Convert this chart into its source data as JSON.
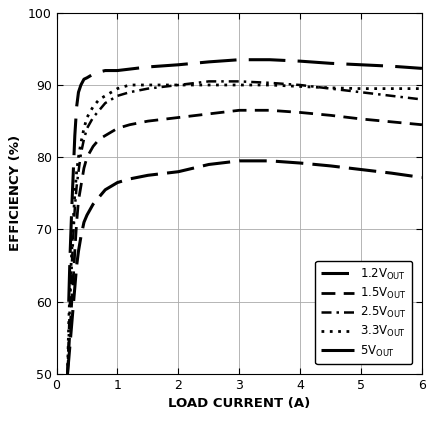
{
  "xlabel": "LOAD CURRENT (A)",
  "ylabel": "EFFICIENCY (%)",
  "xlim": [
    0,
    6
  ],
  "ylim": [
    50,
    100
  ],
  "xticks": [
    0,
    1,
    2,
    3,
    4,
    5,
    6
  ],
  "yticks": [
    50,
    60,
    70,
    80,
    90,
    100
  ],
  "grid_color": "#aaaaaa",
  "bg_color": "#ffffff",
  "font_color": "#000000",
  "series": [
    {
      "label": "1.2V",
      "linestyle_key": "1.2V",
      "color": "#000000",
      "linewidth": 2.2,
      "x": [
        0.18,
        0.2,
        0.22,
        0.25,
        0.28,
        0.3,
        0.33,
        0.36,
        0.4,
        0.45,
        0.5,
        0.6,
        0.7,
        0.8,
        1.0,
        1.2,
        1.5,
        2.0,
        2.5,
        3.0,
        3.5,
        4.0,
        4.5,
        5.0,
        5.5,
        6.0
      ],
      "y": [
        50,
        52,
        54,
        57,
        60,
        62,
        65,
        67,
        69,
        71,
        72,
        73.5,
        74.5,
        75.5,
        76.5,
        77,
        77.5,
        78,
        79,
        79.5,
        79.5,
        79.2,
        78.8,
        78.3,
        77.8,
        77.2
      ]
    },
    {
      "label": "1.5V",
      "linestyle_key": "1.5V",
      "color": "#000000",
      "linewidth": 2.0,
      "x": [
        0.18,
        0.2,
        0.22,
        0.25,
        0.28,
        0.3,
        0.33,
        0.36,
        0.4,
        0.45,
        0.5,
        0.6,
        0.7,
        0.8,
        1.0,
        1.2,
        1.5,
        2.0,
        2.5,
        3.0,
        3.5,
        4.0,
        4.5,
        5.0,
        5.5,
        6.0
      ],
      "y": [
        50,
        53,
        56,
        60,
        64,
        67,
        71,
        74,
        76,
        78.5,
        80,
        81.5,
        82.5,
        83,
        84,
        84.5,
        85,
        85.5,
        86,
        86.5,
        86.5,
        86.2,
        85.8,
        85.3,
        84.9,
        84.5
      ]
    },
    {
      "label": "2.5V",
      "linestyle_key": "2.5V",
      "color": "#000000",
      "linewidth": 1.8,
      "x": [
        0.18,
        0.2,
        0.22,
        0.25,
        0.28,
        0.3,
        0.33,
        0.36,
        0.4,
        0.45,
        0.5,
        0.6,
        0.7,
        0.8,
        1.0,
        1.2,
        1.5,
        2.0,
        2.5,
        3.0,
        3.5,
        4.0,
        4.5,
        5.0,
        5.5,
        6.0
      ],
      "y": [
        50,
        55,
        60,
        65,
        70,
        73,
        76,
        78,
        80.5,
        82.5,
        84,
        85.5,
        86.5,
        87.5,
        88.5,
        89,
        89.5,
        90,
        90.5,
        90.5,
        90.3,
        90.0,
        89.5,
        89.0,
        88.5,
        88.0
      ]
    },
    {
      "label": "3.3V",
      "linestyle_key": "3.3V",
      "color": "#000000",
      "linewidth": 2.0,
      "x": [
        0.18,
        0.2,
        0.22,
        0.25,
        0.28,
        0.3,
        0.33,
        0.36,
        0.4,
        0.45,
        0.5,
        0.6,
        0.7,
        0.8,
        1.0,
        1.2,
        1.5,
        2.0,
        2.5,
        3.0,
        3.5,
        4.0,
        4.5,
        5.0,
        5.5,
        6.0
      ],
      "y": [
        50,
        57,
        62,
        67,
        72,
        75,
        78,
        80,
        82,
        84,
        85.5,
        87,
        88,
        88.5,
        89.5,
        90,
        90,
        90,
        90,
        90,
        90,
        89.8,
        89.6,
        89.5,
        89.5,
        89.5
      ]
    },
    {
      "label": "5V",
      "linestyle_key": "5V",
      "color": "#000000",
      "linewidth": 2.2,
      "x": [
        0.2,
        0.22,
        0.25,
        0.28,
        0.3,
        0.33,
        0.36,
        0.4,
        0.45,
        0.5,
        0.6,
        0.7,
        0.8,
        1.0,
        1.5,
        2.0,
        2.5,
        3.0,
        3.5,
        4.0,
        4.5,
        5.0,
        5.5,
        6.0
      ],
      "y": [
        60,
        66,
        73,
        79,
        83,
        87,
        89,
        90,
        90.8,
        91,
        91.5,
        91.8,
        92,
        92,
        92.5,
        92.8,
        93.2,
        93.5,
        93.5,
        93.3,
        93.0,
        92.8,
        92.6,
        92.3
      ]
    }
  ],
  "legend_labels": [
    "1.2V$_{\\mathregular{OUT}}$",
    "1.5V$_{\\mathregular{OUT}}$",
    "2.5V$_{\\mathregular{OUT}}$",
    "3.3V$_{\\mathregular{OUT}}$",
    "5V$_{\\mathregular{OUT}}$"
  ]
}
